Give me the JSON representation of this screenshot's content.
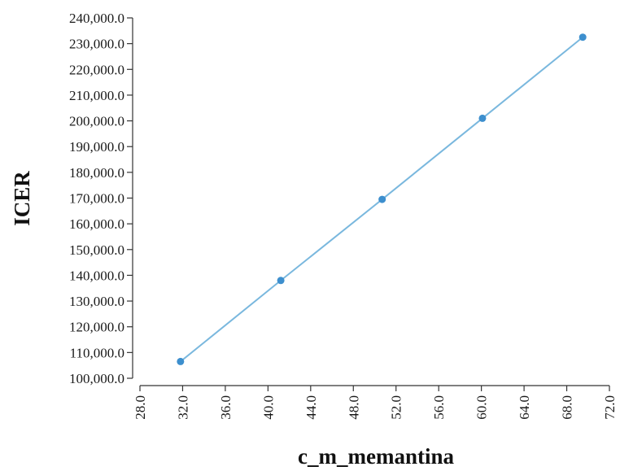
{
  "chart_data": {
    "type": "line",
    "title": "",
    "xlabel": "c_m_memantina",
    "ylabel": "ICER",
    "xlim": [
      28.0,
      72.0
    ],
    "ylim": [
      100000.0,
      240000.0
    ],
    "x_ticks": [
      "28.0",
      "32.0",
      "36.0",
      "40.0",
      "44.0",
      "48.0",
      "52.0",
      "56.0",
      "60.0",
      "64.0",
      "68.0",
      "72.0"
    ],
    "y_ticks": [
      "100,000.0",
      "110,000.0",
      "120,000.0",
      "130,000.0",
      "140,000.0",
      "150,000.0",
      "160,000.0",
      "170,000.0",
      "180,000.0",
      "190,000.0",
      "200,000.0",
      "210,000.0",
      "220,000.0",
      "230,000.0",
      "240,000.0"
    ],
    "series": [
      {
        "x": [
          31.8,
          41.2,
          50.7,
          60.1,
          69.5
        ],
        "y": [
          106500,
          138000,
          169500,
          201000,
          232500
        ]
      }
    ],
    "grid": false,
    "legend": "none",
    "colors": {
      "line": "#7ab8de",
      "marker": "#3d8fce",
      "axis": "#333333"
    }
  }
}
